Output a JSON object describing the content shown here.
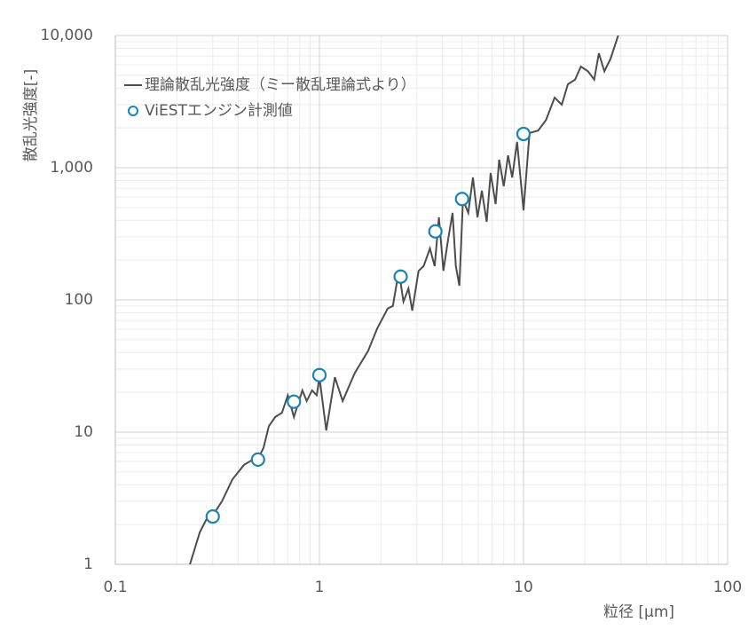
{
  "chart_data": {
    "type": "line",
    "y_label": "散乱光強度[-]",
    "x_label": "粒径 [μm]",
    "log_x": true,
    "log_y": true,
    "grid": true,
    "legend": "upper left",
    "xlim": [
      0.1,
      100
    ],
    "xticks": [
      0.1,
      1,
      10,
      100
    ],
    "ylim": [
      1,
      10000
    ],
    "yticks": [
      1,
      10,
      100,
      {
        "value": 1000,
        "label": "1,000"
      },
      {
        "value": 10000,
        "label": "10,000"
      }
    ],
    "series": [
      {
        "name": "理論散乱光強度（ミー散乱理論式より）",
        "type": "line",
        "color": "#4d4d4d",
        "x": [
          0.232,
          0.259,
          0.278,
          0.3,
          0.333,
          0.375,
          0.427,
          0.472,
          0.5,
          0.532,
          0.565,
          0.607,
          0.655,
          0.7,
          0.75,
          0.786,
          0.825,
          0.866,
          0.92,
          0.97,
          1.0,
          1.08,
          1.19,
          1.3,
          1.49,
          1.73,
          1.92,
          2.16,
          2.29,
          2.45,
          2.58,
          2.73,
          2.85,
          3.06,
          3.24,
          3.48,
          3.67,
          3.85,
          4.05,
          4.27,
          4.49,
          4.66,
          4.85,
          5.05,
          5.36,
          5.65,
          5.95,
          6.25,
          6.6,
          6.9,
          7.3,
          7.6,
          8.0,
          8.4,
          8.8,
          9.3,
          10.0,
          10.7,
          11.8,
          12.9,
          14.2,
          15.4,
          16.5,
          17.9,
          19.1,
          20.7,
          22.2,
          23.4,
          24.9,
          26.7,
          29.1
        ],
        "values": [
          1,
          1.74,
          2.16,
          2.34,
          3.0,
          4.4,
          5.65,
          6.2,
          6.3,
          7.6,
          11.1,
          13,
          14,
          19,
          13,
          16.4,
          20.7,
          17.2,
          20.7,
          19,
          26,
          10.3,
          26,
          17.2,
          28,
          41,
          61,
          86,
          90,
          166,
          97,
          122,
          83,
          166,
          180,
          245,
          180,
          421,
          166,
          286,
          455,
          180,
          128,
          573,
          455,
          843,
          421,
          670,
          390,
          912,
          530,
          1150,
          723,
          1240,
          843,
          1570,
          476,
          1830,
          1910,
          2300,
          3390,
          3000,
          4280,
          4640,
          5820,
          5360,
          4640,
          7340,
          5360,
          6680,
          10000
        ]
      },
      {
        "name": "ViESTエンジン計測値",
        "type": "scatter",
        "color": "#1b84b0",
        "x": [
          0.3,
          0.5,
          0.75,
          1,
          2.5,
          3.7,
          5,
          10
        ],
        "values": [
          2.3,
          6.2,
          17,
          27,
          150,
          330,
          580,
          1800
        ]
      }
    ]
  }
}
